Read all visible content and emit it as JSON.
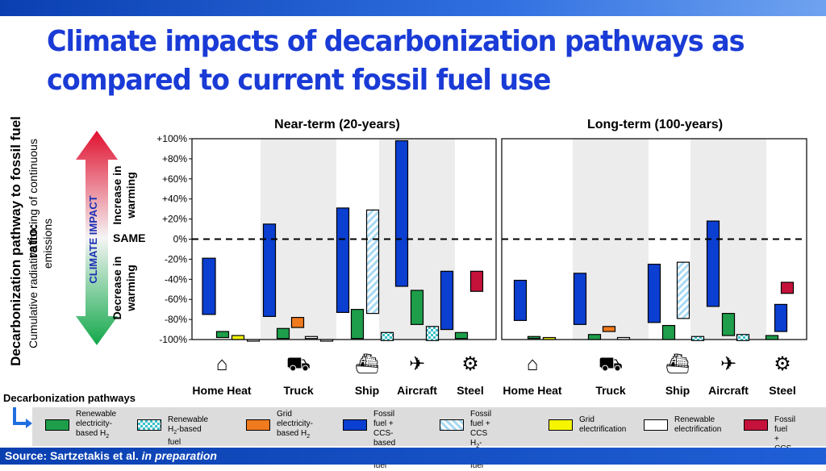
{
  "title_line1": "Climate impacts of decarbonization pathways as",
  "title_line2": "compared to current fossil fuel use",
  "y_axis_title": "Decarbonization pathway to fossil fuel ratio:",
  "y_axis_subtitle": "Cumulative radiative forcing of continuous emissions",
  "climate_impact_label": "CLIMATE IMPACT",
  "increase_label": "Increase in warming",
  "decrease_label": "Decrease in warming",
  "same_label": "SAME",
  "decarb_pathways_label": "Decarbonization pathways",
  "source_prefix": "Source: Sartzetakis et al. ",
  "source_suffix": "in preparation",
  "colors": {
    "renewable_h2_elec": "#1e9e4a",
    "renewable_h2_fuel": "#aee5ea",
    "grid_h2": "#f07a1e",
    "fossil_ccs_h2": "#0b3fd1",
    "fossil_ccs_h2_fuel": "#a9d9f2",
    "grid_elec": "#f5f500",
    "renewable_elec": "#ffffff",
    "fossil_ccs": "#c4123a"
  },
  "legend": [
    {
      "key": "renewable_h2_elec",
      "line1": "Renewable",
      "line2": "electricity-",
      "line3": "based H",
      "sub": "2",
      "pattern": "solid"
    },
    {
      "key": "renewable_h2_fuel",
      "line1": "Renewable",
      "line2": "H",
      "sub": "2",
      "line2b": "-based fuel",
      "pattern": "checker"
    },
    {
      "key": "grid_h2",
      "line1": "Grid",
      "line2": "electricity-",
      "line3": "based H",
      "sub": "2",
      "pattern": "solid"
    },
    {
      "key": "fossil_ccs_h2",
      "line1": "Fossil fuel +",
      "line2": "CCS-based",
      "line3": "H",
      "sub": "2",
      "line3b": " fuel",
      "pattern": "solid"
    },
    {
      "key": "fossil_ccs_h2_fuel",
      "line1": "Fossil fuel +",
      "line2": "CCS H",
      "sub": "2",
      "line2b": "-based",
      "line3": "fuel",
      "pattern": "hatch"
    },
    {
      "key": "grid_elec",
      "line1": "Grid",
      "line2": "electrification",
      "pattern": "solid"
    },
    {
      "key": "renewable_elec",
      "line1": "Renewable",
      "line2": "electrification",
      "pattern": "solid"
    },
    {
      "key": "fossil_ccs",
      "line1": "Fossil fuel",
      "line2": "+ CCS",
      "pattern": "solid"
    }
  ],
  "chart_data": {
    "type": "bar",
    "ylim": [
      -100,
      100
    ],
    "ticks": [
      "+100%",
      "+80%",
      "+60%",
      "+40%",
      "+20%",
      "0%",
      "-20%",
      "-40%",
      "-60%",
      "-80%",
      "-100%"
    ],
    "tick_values": [
      100,
      80,
      60,
      40,
      20,
      0,
      -20,
      -40,
      -60,
      -80,
      -100
    ],
    "categories": [
      "Home Heat",
      "Truck",
      "Ship",
      "Aircraft",
      "Steel"
    ],
    "panels": [
      {
        "title": "Near-term (20-years)",
        "bars": [
          {
            "category": "Home Heat",
            "series": "fossil_ccs_h2",
            "low": -75,
            "high": -19
          },
          {
            "category": "Home Heat",
            "series": "renewable_h2_elec",
            "low": -98,
            "high": -92
          },
          {
            "category": "Home Heat",
            "series": "grid_elec",
            "low": -100,
            "high": -96
          },
          {
            "category": "Home Heat",
            "series": "renewable_elec",
            "low": -101,
            "high": -100
          },
          {
            "category": "Truck",
            "series": "fossil_ccs_h2",
            "low": -77,
            "high": 15
          },
          {
            "category": "Truck",
            "series": "grid_h2",
            "low": -88,
            "high": -78
          },
          {
            "category": "Truck",
            "series": "renewable_h2_elec",
            "low": -99,
            "high": -89
          },
          {
            "category": "Truck",
            "series": "renewable_elec",
            "low": -99,
            "high": -97
          },
          {
            "category": "Truck",
            "series": "renewable_elec",
            "low": -101,
            "high": -100
          },
          {
            "category": "Ship",
            "series": "fossil_ccs_h2",
            "low": -73,
            "high": 31
          },
          {
            "category": "Ship",
            "series": "fossil_ccs_h2_fuel",
            "low": -74,
            "high": 29
          },
          {
            "category": "Ship",
            "series": "renewable_h2_elec",
            "low": -99,
            "high": -70
          },
          {
            "category": "Ship",
            "series": "renewable_h2_fuel",
            "low": -101,
            "high": -93
          },
          {
            "category": "Aircraft",
            "series": "fossil_ccs_h2",
            "low": -47,
            "high": 98
          },
          {
            "category": "Aircraft",
            "series": "renewable_h2_elec",
            "low": -85,
            "high": -51
          },
          {
            "category": "Aircraft",
            "series": "renewable_h2_fuel",
            "low": -101,
            "high": -87
          },
          {
            "category": "Steel",
            "series": "fossil_ccs_h2",
            "low": -90,
            "high": -32
          },
          {
            "category": "Steel",
            "series": "fossil_ccs",
            "low": -52,
            "high": -32
          },
          {
            "category": "Steel",
            "series": "renewable_h2_elec",
            "low": -99,
            "high": -93
          }
        ]
      },
      {
        "title": "Long-term (100-years)",
        "bars": [
          {
            "category": "Home Heat",
            "series": "fossil_ccs_h2",
            "low": -81,
            "high": -41
          },
          {
            "category": "Home Heat",
            "series": "renewable_h2_elec",
            "low": -99,
            "high": -97
          },
          {
            "category": "Home Heat",
            "series": "grid_elec",
            "low": -100,
            "high": -98
          },
          {
            "category": "Truck",
            "series": "fossil_ccs_h2",
            "low": -85,
            "high": -34
          },
          {
            "category": "Truck",
            "series": "grid_h2",
            "low": -92,
            "high": -87
          },
          {
            "category": "Truck",
            "series": "renewable_h2_elec",
            "low": -100,
            "high": -95
          },
          {
            "category": "Truck",
            "series": "renewable_elec",
            "low": -100,
            "high": -98
          },
          {
            "category": "Ship",
            "series": "fossil_ccs_h2",
            "low": -83,
            "high": -25
          },
          {
            "category": "Ship",
            "series": "fossil_ccs_h2_fuel",
            "low": -79,
            "high": -23
          },
          {
            "category": "Ship",
            "series": "renewable_h2_elec",
            "low": -100,
            "high": -86
          },
          {
            "category": "Ship",
            "series": "renewable_h2_fuel",
            "low": -101,
            "high": -97
          },
          {
            "category": "Aircraft",
            "series": "fossil_ccs_h2",
            "low": -67,
            "high": 18
          },
          {
            "category": "Aircraft",
            "series": "renewable_h2_elec",
            "low": -96,
            "high": -74
          },
          {
            "category": "Aircraft",
            "series": "renewable_h2_fuel",
            "low": -101,
            "high": -95
          },
          {
            "category": "Steel",
            "series": "fossil_ccs_h2",
            "low": -92,
            "high": -65
          },
          {
            "category": "Steel",
            "series": "fossil_ccs",
            "low": -54,
            "high": -43
          },
          {
            "category": "Steel",
            "series": "renewable_h2_elec",
            "low": -100,
            "high": -96
          }
        ]
      }
    ]
  }
}
